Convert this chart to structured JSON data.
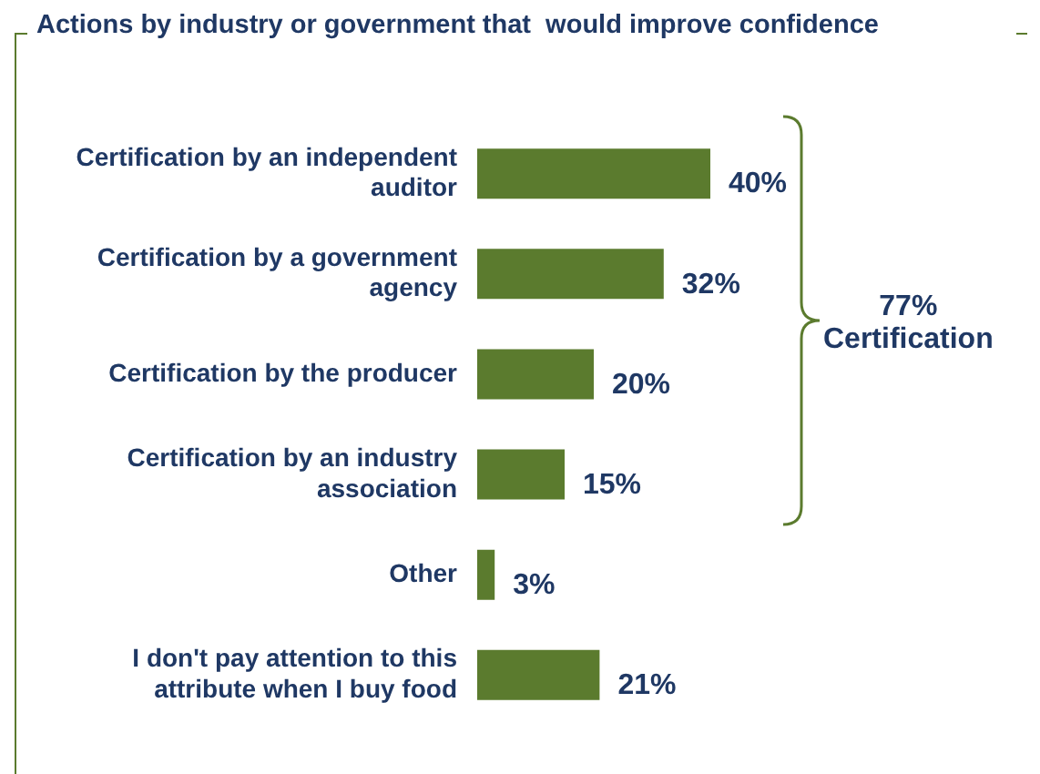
{
  "chart_data": {
    "type": "bar",
    "orientation": "horizontal",
    "title": "Actions by industry or government that  would improve confidence",
    "categories": [
      "Certification by an independent auditor",
      "Certification by a government agency",
      "Certification by the producer",
      "Certification by an industry association",
      "Other",
      "I don't pay attention to this attribute when I buy food"
    ],
    "values": [
      40,
      32,
      20,
      15,
      3,
      21
    ],
    "value_labels": [
      "40%",
      "32%",
      "20%",
      "15%",
      "3%",
      "21%"
    ],
    "color": "#5b7b2e",
    "annotations": [
      "77%\nCertification"
    ]
  }
}
